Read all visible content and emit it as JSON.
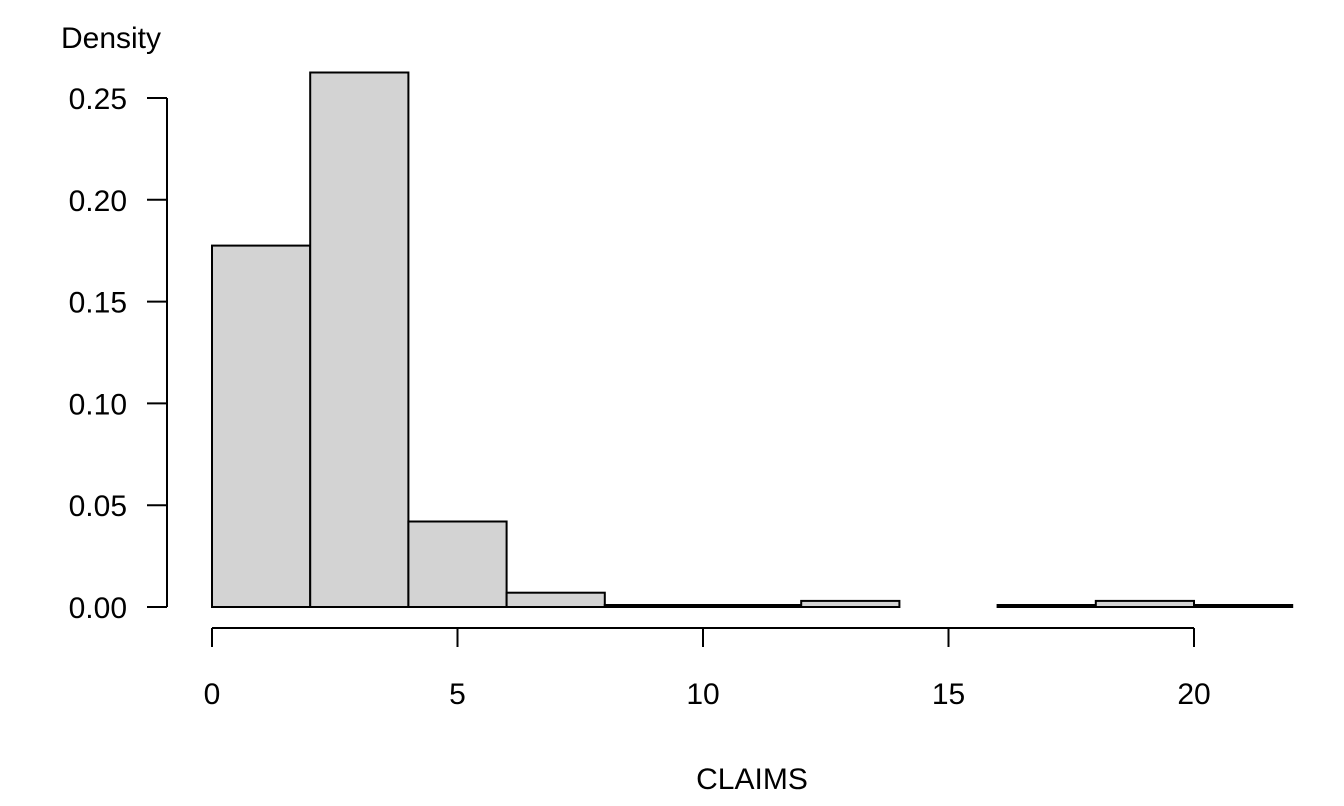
{
  "chart_data": {
    "type": "bar",
    "subtype": "histogram",
    "title": "",
    "xlabel": "CLAIMS",
    "ylabel": "Density",
    "xlim": [
      0,
      22
    ],
    "ylim": [
      0,
      0.25
    ],
    "x_ticks": [
      0,
      5,
      10,
      15,
      20
    ],
    "y_ticks": [
      0.0,
      0.05,
      0.1,
      0.15,
      0.2,
      0.25
    ],
    "x_tick_labels": [
      "0",
      "5",
      "10",
      "15",
      "20"
    ],
    "y_tick_labels": [
      "0.00",
      "0.05",
      "0.10",
      "0.15",
      "0.20",
      "0.25"
    ],
    "bins": [
      {
        "x0": 0,
        "x1": 2,
        "density": 0.1775
      },
      {
        "x0": 2,
        "x1": 4,
        "density": 0.2625
      },
      {
        "x0": 4,
        "x1": 6,
        "density": 0.042
      },
      {
        "x0": 6,
        "x1": 8,
        "density": 0.007
      },
      {
        "x0": 8,
        "x1": 10,
        "density": 0.001
      },
      {
        "x0": 10,
        "x1": 12,
        "density": 0.001
      },
      {
        "x0": 12,
        "x1": 14,
        "density": 0.003
      },
      {
        "x0": 14,
        "x1": 16,
        "density": 0.0
      },
      {
        "x0": 16,
        "x1": 18,
        "density": 0.001
      },
      {
        "x0": 18,
        "x1": 20,
        "density": 0.003
      },
      {
        "x0": 20,
        "x1": 22,
        "density": 0.001
      }
    ],
    "bar_fill": "#d3d3d3",
    "bar_stroke": "#000000",
    "grid": false
  }
}
